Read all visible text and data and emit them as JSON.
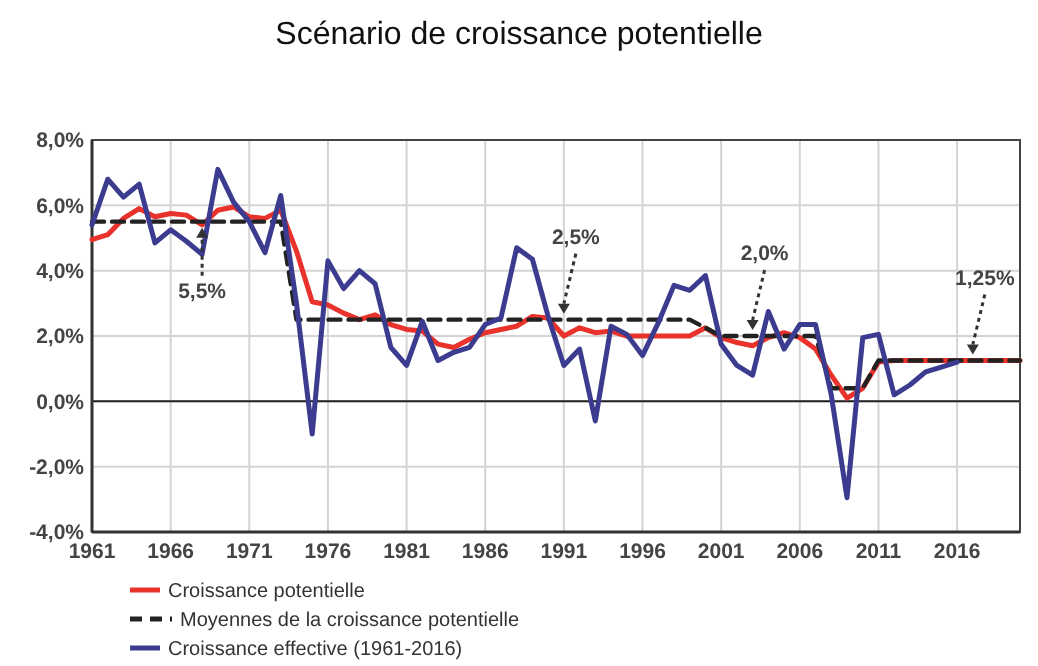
{
  "chart_data": {
    "type": "line",
    "title": "Scénario de croissance potentielle",
    "xlim": [
      1961,
      2020
    ],
    "xticks": [
      1961,
      1966,
      1971,
      1976,
      1981,
      1986,
      1991,
      1996,
      2001,
      2006,
      2011,
      2016
    ],
    "ylim": [
      -4,
      8
    ],
    "yticks": [
      {
        "value": -4,
        "label": "-4,0%"
      },
      {
        "value": -2,
        "label": "-2,0%"
      },
      {
        "value": 0,
        "label": "0,0%"
      },
      {
        "value": 2,
        "label": "2,0%"
      },
      {
        "value": 4,
        "label": "4,0%"
      },
      {
        "value": 6,
        "label": "6,0%"
      },
      {
        "value": 8,
        "label": "8,0%"
      }
    ],
    "grid": true,
    "legend": "bottom",
    "marker": "none",
    "series": [
      {
        "name": "Croissance potentielle",
        "color": "#e8322b",
        "line_style": "solid",
        "x": [
          1961,
          1962,
          1963,
          1964,
          1965,
          1966,
          1967,
          1968,
          1969,
          1970,
          1971,
          1972,
          1973,
          1974,
          1975,
          1976,
          1977,
          1978,
          1979,
          1980,
          1981,
          1982,
          1983,
          1984,
          1985,
          1986,
          1987,
          1988,
          1989,
          1990,
          1991,
          1992,
          1993,
          1994,
          1995,
          1996,
          1997,
          1998,
          1999,
          2000,
          2001,
          2002,
          2003,
          2004,
          2005,
          2006,
          2007,
          2008,
          2009,
          2010,
          2011,
          2012,
          2013,
          2014,
          2015,
          2016,
          2017,
          2018,
          2019,
          2020
        ],
        "values": [
          4.95,
          5.1,
          5.6,
          5.9,
          5.65,
          5.75,
          5.7,
          5.4,
          5.85,
          5.95,
          5.65,
          5.6,
          5.85,
          4.6,
          3.05,
          2.95,
          2.7,
          2.5,
          2.65,
          2.35,
          2.2,
          2.15,
          1.75,
          1.65,
          1.9,
          2.1,
          2.2,
          2.3,
          2.6,
          2.55,
          2.0,
          2.25,
          2.1,
          2.15,
          2.0,
          2.0,
          2.0,
          2.0,
          2.0,
          2.25,
          1.95,
          1.8,
          1.7,
          1.95,
          2.1,
          1.95,
          1.6,
          0.8,
          0.1,
          0.4,
          1.2,
          1.25,
          1.25,
          1.25,
          1.25,
          1.25,
          1.25,
          1.25,
          1.25,
          1.25
        ]
      },
      {
        "name": "Moyennes de la croissance potentielle",
        "color": "#222222",
        "line_style": "dashed",
        "x": [
          1961,
          1973,
          1974,
          1999,
          2001,
          2007,
          2008,
          2010,
          2011,
          2020
        ],
        "values": [
          5.5,
          5.5,
          2.5,
          2.5,
          2.0,
          2.0,
          0.4,
          0.4,
          1.25,
          1.25
        ]
      },
      {
        "name": "Croissance effective (1961-2016)",
        "color": "#3b3b8f",
        "line_style": "solid",
        "x": [
          1961,
          1962,
          1963,
          1964,
          1965,
          1966,
          1967,
          1968,
          1969,
          1970,
          1971,
          1972,
          1973,
          1974,
          1975,
          1976,
          1977,
          1978,
          1979,
          1980,
          1981,
          1982,
          1983,
          1984,
          1985,
          1986,
          1987,
          1988,
          1989,
          1990,
          1991,
          1992,
          1993,
          1994,
          1995,
          1996,
          1997,
          1998,
          1999,
          2000,
          2001,
          2002,
          2003,
          2004,
          2005,
          2006,
          2007,
          2008,
          2009,
          2010,
          2011,
          2012,
          2013,
          2014,
          2015,
          2016
        ],
        "values": [
          5.4,
          6.8,
          6.25,
          6.65,
          4.85,
          5.25,
          4.9,
          4.5,
          7.1,
          6.1,
          5.5,
          4.55,
          6.3,
          3.0,
          -1.0,
          4.3,
          3.45,
          4.0,
          3.6,
          1.65,
          1.1,
          2.45,
          1.25,
          1.5,
          1.65,
          2.35,
          2.55,
          4.7,
          4.35,
          2.6,
          1.1,
          1.6,
          -0.6,
          2.3,
          2.05,
          1.4,
          2.4,
          3.55,
          3.4,
          3.85,
          1.75,
          1.1,
          0.8,
          2.75,
          1.6,
          2.35,
          2.35,
          0.2,
          -2.95,
          1.95,
          2.05,
          0.2,
          0.5,
          0.9,
          1.05,
          1.2
        ]
      }
    ],
    "annotations": [
      {
        "text": "5,5%",
        "x": 1968,
        "y": 5.5
      },
      {
        "text": "2,5%",
        "x": 1991,
        "y": 2.5
      },
      {
        "text": "2,0%",
        "x": 2003,
        "y": 2.0
      },
      {
        "text": "1,25%",
        "x": 2017,
        "y": 1.25
      }
    ]
  }
}
